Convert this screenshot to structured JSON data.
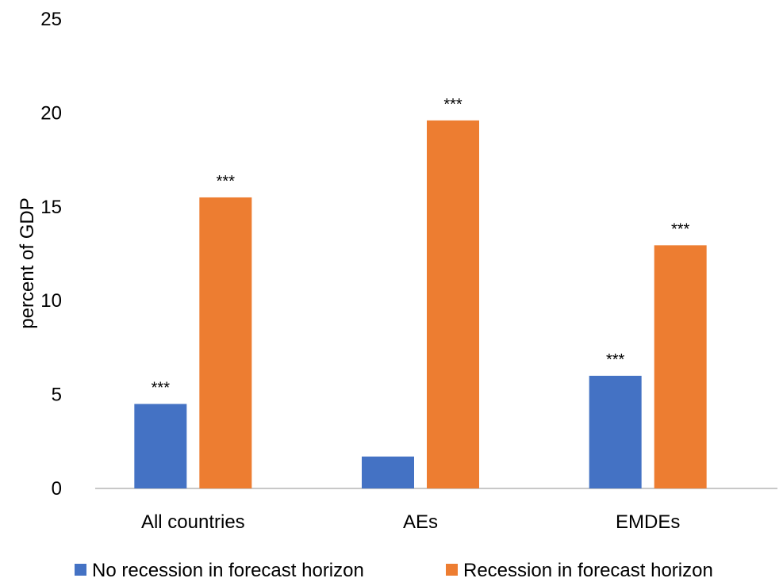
{
  "chart_data": {
    "type": "bar",
    "title": "",
    "xlabel": "",
    "ylabel": "percent of GDP",
    "ylim": [
      0,
      25
    ],
    "yticks": [
      0,
      5,
      10,
      15,
      20,
      25
    ],
    "grid": false,
    "legend_position": "bottom",
    "categories": [
      "All countries",
      "AEs",
      "EMDEs"
    ],
    "series": [
      {
        "name": "No recession in forecast horizon",
        "color": "#4472C4",
        "values": [
          4.5,
          1.7,
          6.0
        ],
        "annotations": [
          "***",
          "",
          "***"
        ]
      },
      {
        "name": "Recession in forecast horizon",
        "color": "#ED7D31",
        "values": [
          15.5,
          19.6,
          12.95
        ],
        "annotations": [
          "***",
          "***",
          "***"
        ]
      }
    ]
  }
}
